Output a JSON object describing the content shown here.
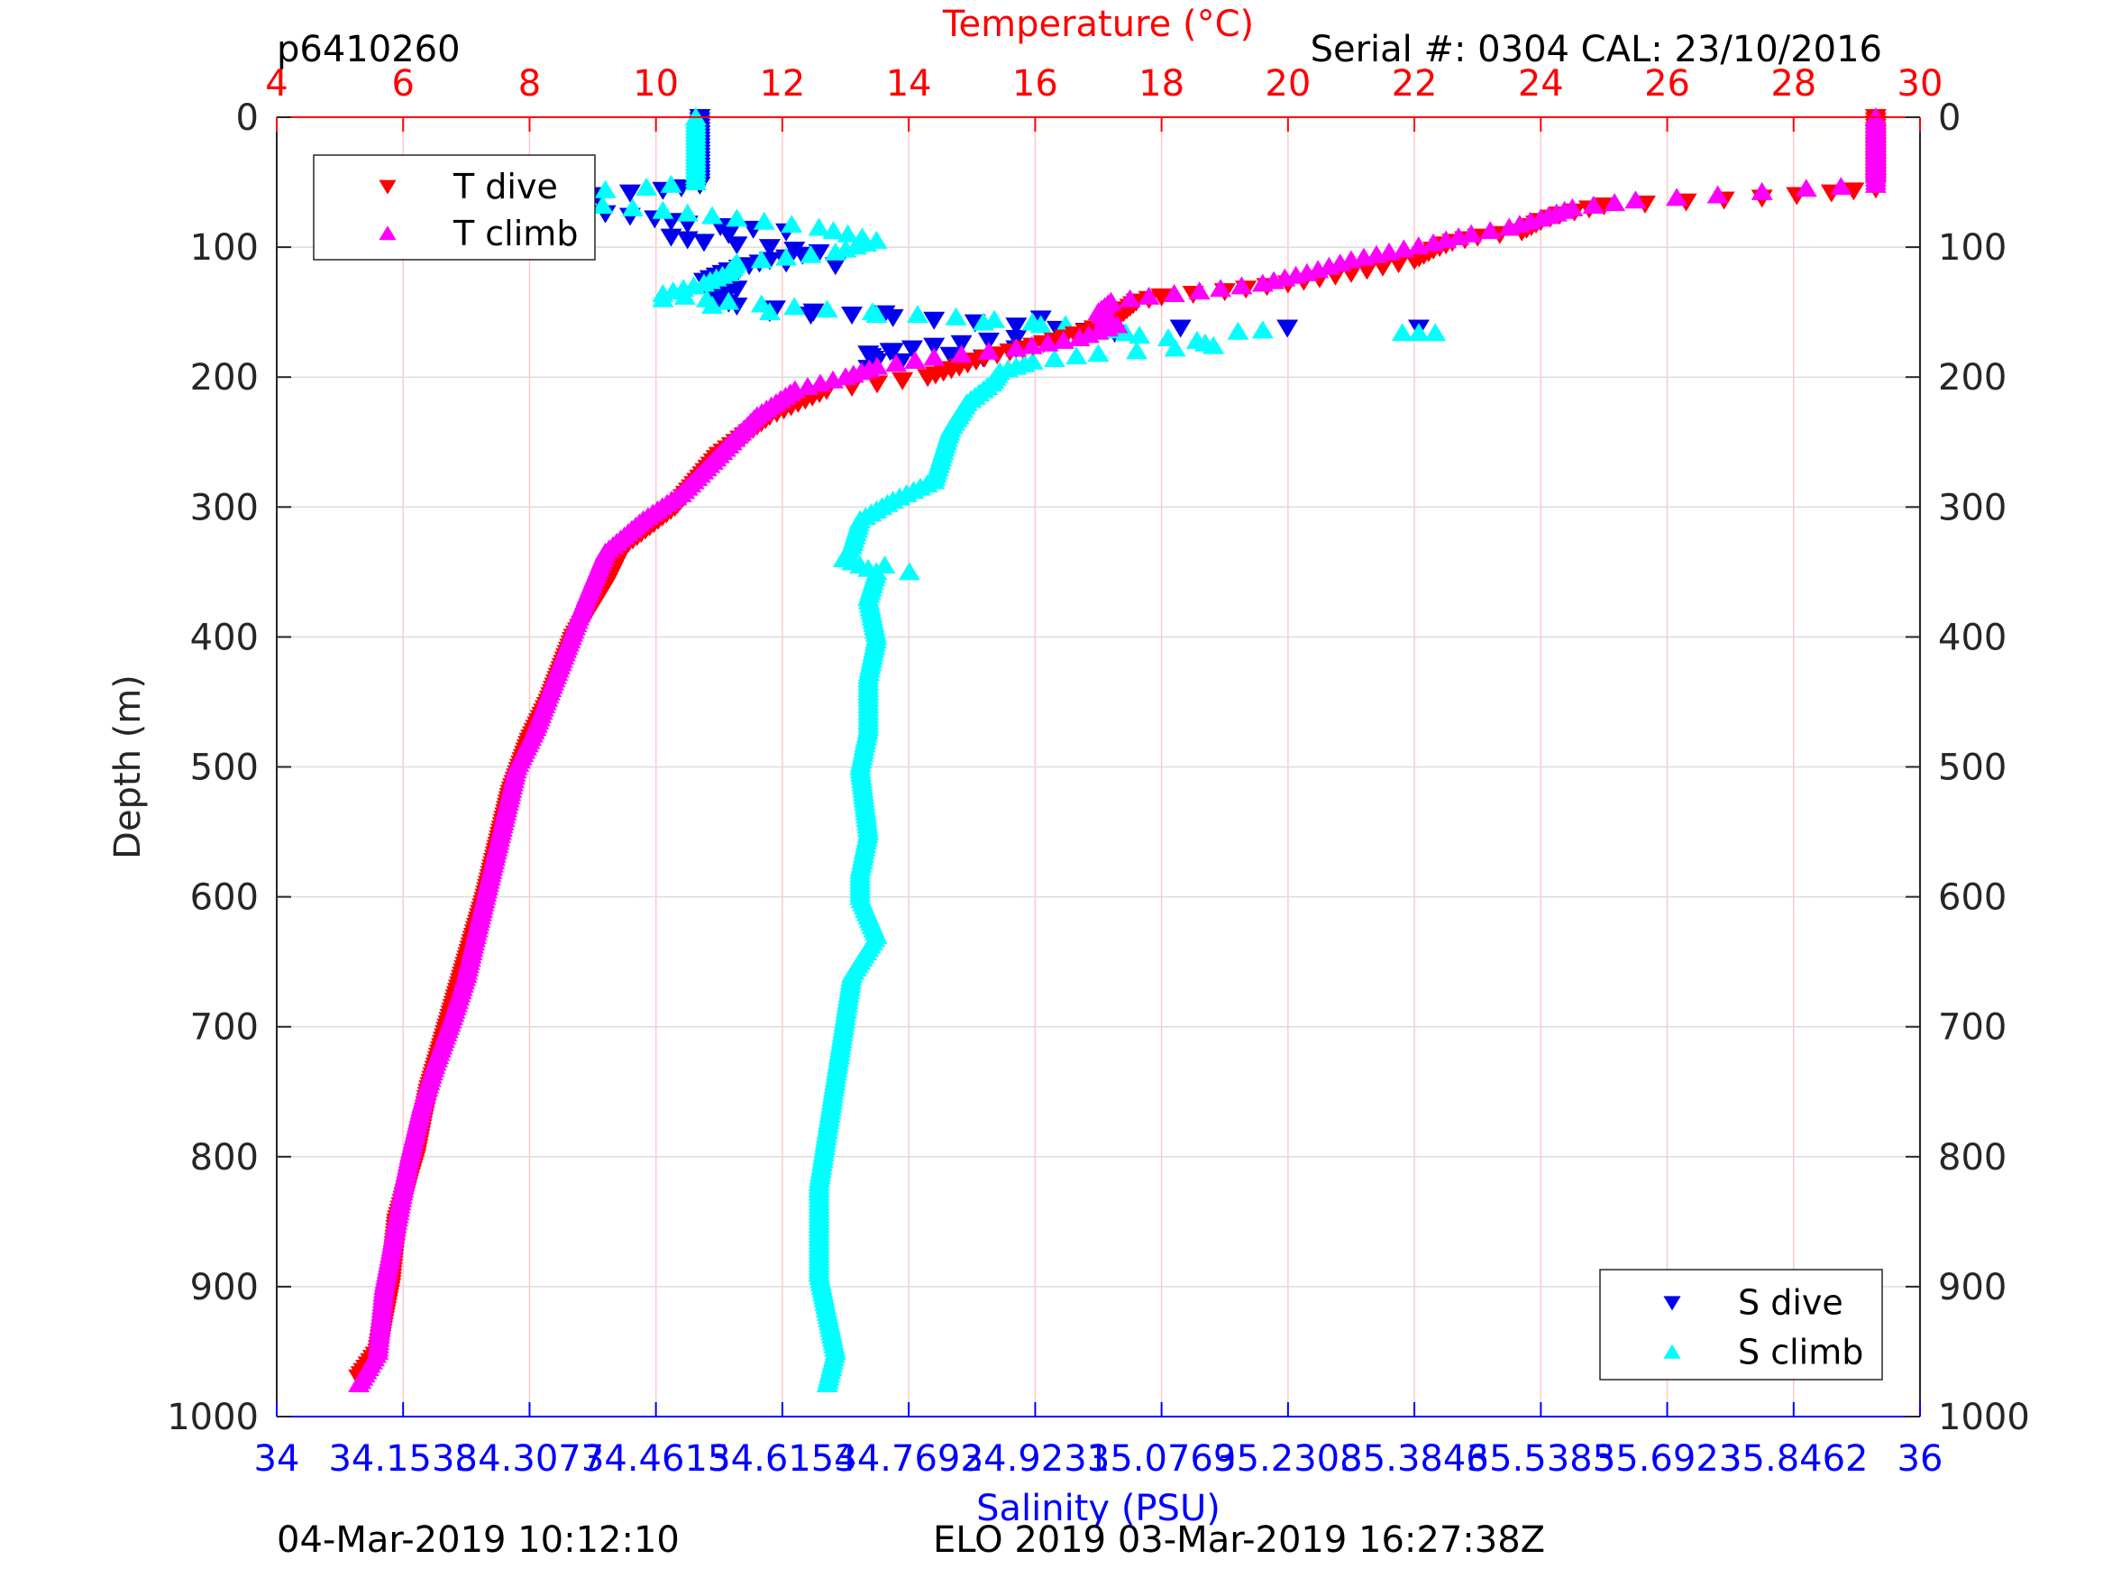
{
  "header": {
    "glider_id": "p6410260",
    "serial_cal": "Serial #: 0304  CAL: 23/10/2016"
  },
  "footer": {
    "left": "04-Mar-2019 10:12:10",
    "center": "ELO 2019 03-Mar-2019 16:27:38Z"
  },
  "colors": {
    "temperature_axis": "#ff0000",
    "salinity_axis": "#0000ff",
    "t_dive": "#ff0000",
    "t_climb": "#ff00ff",
    "s_dive": "#0000ee",
    "s_climb": "#00ffff",
    "grid_vertical": "#ffc8c8",
    "grid_horizontal": "#dcdcdc"
  },
  "chart_data": {
    "type": "scatter",
    "y_axis": {
      "label": "Depth (m)",
      "range": [
        0,
        1000
      ],
      "reversed": true,
      "ticks": [
        "0",
        "100",
        "200",
        "300",
        "400",
        "500",
        "600",
        "700",
        "800",
        "900",
        "1000"
      ],
      "tick_values": [
        0,
        100,
        200,
        300,
        400,
        500,
        600,
        700,
        800,
        900,
        1000
      ],
      "grid": true
    },
    "top_axis": {
      "label": "Temperature (°C)",
      "range": [
        4,
        30
      ],
      "ticks": [
        "4",
        "6",
        "8",
        "10",
        "12",
        "14",
        "16",
        "18",
        "20",
        "22",
        "24",
        "26",
        "28",
        "30"
      ],
      "tick_values": [
        4,
        6,
        8,
        10,
        12,
        14,
        16,
        18,
        20,
        22,
        24,
        26,
        28,
        30
      ],
      "grid": true
    },
    "bottom_axis": {
      "label": "Salinity (PSU)",
      "range": [
        34,
        36
      ],
      "ticks": [
        "34",
        "34.1538",
        "34.3077",
        "34.4615",
        "34.6154",
        "34.7692",
        "34.9231",
        "35.0769",
        "35.2308",
        "35.3846",
        "35.5385",
        "35.6923",
        "35.8462",
        "36"
      ],
      "tick_values": [
        34,
        34.1538,
        34.3077,
        34.4615,
        34.6154,
        34.7692,
        34.9231,
        35.0769,
        35.2308,
        35.3846,
        35.5385,
        35.6923,
        35.8462,
        36
      ]
    },
    "legend_temperature": {
      "position": "top-left",
      "entries": [
        {
          "label": "T dive",
          "marker": "triangle-down",
          "color": "#ff0000"
        },
        {
          "label": "T climb",
          "marker": "triangle-up",
          "color": "#ff00ff"
        }
      ]
    },
    "legend_salinity": {
      "position": "bottom-right",
      "entries": [
        {
          "label": "S dive",
          "marker": "triangle-down",
          "color": "#0000ee"
        },
        {
          "label": "S climb",
          "marker": "triangle-up",
          "color": "#00ffff"
        }
      ]
    },
    "series": [
      {
        "name": "T dive",
        "axis": "temperature",
        "marker": "triangle-down",
        "color": "#ff0000",
        "profile": [
          [
            29.3,
            0
          ],
          [
            29.3,
            20
          ],
          [
            29.3,
            40
          ],
          [
            29.3,
            55
          ],
          [
            28.6,
            58
          ],
          [
            27.5,
            62
          ],
          [
            26.3,
            65
          ],
          [
            25.0,
            68
          ],
          [
            24.3,
            75
          ],
          [
            24.0,
            80
          ],
          [
            23.7,
            88
          ],
          [
            23.0,
            92
          ],
          [
            22.6,
            96
          ],
          [
            22.3,
            102
          ],
          [
            22.0,
            110
          ],
          [
            21.5,
            115
          ],
          [
            21.0,
            120
          ],
          [
            20.0,
            128
          ],
          [
            19.0,
            134
          ],
          [
            18.0,
            138
          ],
          [
            17.6,
            142
          ],
          [
            17.4,
            150
          ],
          [
            17.2,
            158
          ],
          [
            16.8,
            165
          ],
          [
            16.3,
            172
          ],
          [
            15.8,
            178
          ],
          [
            15.2,
            185
          ],
          [
            14.8,
            192
          ],
          [
            14.3,
            200
          ],
          [
            12.7,
            210
          ],
          [
            11.8,
            230
          ],
          [
            11.0,
            260
          ],
          [
            10.3,
            300
          ],
          [
            9.5,
            330
          ],
          [
            9.2,
            360
          ],
          [
            8.7,
            400
          ],
          [
            8.3,
            450
          ],
          [
            8.0,
            480
          ],
          [
            7.7,
            520
          ],
          [
            7.5,
            560
          ],
          [
            7.3,
            600
          ],
          [
            7.0,
            650
          ],
          [
            6.7,
            700
          ],
          [
            6.4,
            750
          ],
          [
            6.2,
            800
          ],
          [
            5.9,
            850
          ],
          [
            5.8,
            900
          ],
          [
            5.6,
            950
          ],
          [
            5.3,
            970
          ]
        ]
      },
      {
        "name": "T climb",
        "axis": "temperature",
        "marker": "triangle-up",
        "color": "#ff00ff",
        "profile": [
          [
            29.3,
            0
          ],
          [
            29.3,
            20
          ],
          [
            29.3,
            40
          ],
          [
            29.3,
            52
          ],
          [
            28.2,
            55
          ],
          [
            26.8,
            60
          ],
          [
            25.5,
            64
          ],
          [
            24.5,
            70
          ],
          [
            24.0,
            78
          ],
          [
            23.5,
            85
          ],
          [
            22.9,
            90
          ],
          [
            22.3,
            97
          ],
          [
            21.6,
            104
          ],
          [
            21.0,
            110
          ],
          [
            20.3,
            120
          ],
          [
            19.6,
            128
          ],
          [
            18.6,
            134
          ],
          [
            17.8,
            138
          ],
          [
            17.2,
            142
          ],
          [
            17.0,
            150
          ],
          [
            17.1,
            155
          ],
          [
            17.3,
            160
          ],
          [
            16.7,
            170
          ],
          [
            15.7,
            178
          ],
          [
            14.4,
            185
          ],
          [
            13.5,
            192
          ],
          [
            13.0,
            200
          ],
          [
            12.2,
            210
          ],
          [
            11.6,
            230
          ],
          [
            11.0,
            260
          ],
          [
            10.4,
            290
          ],
          [
            9.8,
            310
          ],
          [
            9.2,
            335
          ],
          [
            8.9,
            370
          ],
          [
            8.5,
            420
          ],
          [
            8.1,
            470
          ],
          [
            7.8,
            500
          ],
          [
            7.6,
            540
          ],
          [
            7.4,
            580
          ],
          [
            7.2,
            620
          ],
          [
            7.0,
            660
          ],
          [
            6.8,
            690
          ],
          [
            6.5,
            730
          ],
          [
            6.3,
            760
          ],
          [
            6.1,
            800
          ],
          [
            5.9,
            850
          ],
          [
            5.7,
            900
          ],
          [
            5.6,
            950
          ],
          [
            5.3,
            975
          ]
        ]
      },
      {
        "name": "S dive",
        "axis": "salinity",
        "marker": "triangle-down",
        "color": "#0000ee",
        "profile": [
          [
            34.515,
            0
          ],
          [
            34.515,
            20
          ],
          [
            34.515,
            40
          ],
          [
            34.515,
            52
          ],
          [
            34.47,
            56
          ],
          [
            34.39,
            60
          ],
          [
            34.33,
            66
          ],
          [
            34.37,
            72
          ],
          [
            34.46,
            78
          ],
          [
            34.5,
            82
          ],
          [
            34.62,
            88
          ],
          [
            34.48,
            92
          ],
          [
            34.52,
            96
          ],
          [
            34.6,
            100
          ],
          [
            34.66,
            104
          ],
          [
            34.6,
            110
          ],
          [
            34.55,
            118
          ],
          [
            34.52,
            126
          ],
          [
            34.56,
            132
          ],
          [
            34.53,
            138
          ],
          [
            34.56,
            145
          ],
          [
            34.7,
            152
          ],
          [
            34.85,
            158
          ],
          [
            34.95,
            163
          ],
          [
            35.02,
            166
          ],
          [
            34.9,
            170
          ],
          [
            34.8,
            176
          ],
          [
            34.72,
            182
          ],
          [
            34.73,
            188
          ]
        ],
        "scatter": [
          [
            34.6,
            150
          ],
          [
            34.65,
            152
          ],
          [
            34.74,
            151
          ],
          [
            34.93,
            155
          ],
          [
            35.1,
            162
          ],
          [
            35.23,
            162
          ],
          [
            35.39,
            162
          ],
          [
            34.75,
            180
          ],
          [
            34.82,
            183
          ],
          [
            34.76,
            188
          ],
          [
            34.72,
            193
          ],
          [
            34.86,
            185
          ],
          [
            34.9,
            178
          ],
          [
            34.62,
            112
          ],
          [
            34.68,
            114
          ],
          [
            34.56,
            120
          ]
        ]
      },
      {
        "name": "S climb",
        "axis": "salinity",
        "marker": "triangle-up",
        "color": "#00ffff",
        "profile": [
          [
            34.51,
            0
          ],
          [
            34.51,
            20
          ],
          [
            34.51,
            40
          ],
          [
            34.51,
            50
          ],
          [
            34.45,
            54
          ],
          [
            34.35,
            58
          ],
          [
            34.29,
            62
          ],
          [
            34.36,
            66
          ],
          [
            34.47,
            72
          ],
          [
            34.56,
            78
          ],
          [
            34.66,
            85
          ],
          [
            34.73,
            95
          ],
          [
            34.68,
            104
          ],
          [
            34.56,
            112
          ],
          [
            34.55,
            120
          ],
          [
            34.52,
            128
          ],
          [
            34.47,
            136
          ],
          [
            34.55,
            142
          ],
          [
            34.67,
            148
          ],
          [
            34.78,
            152
          ],
          [
            34.92,
            158
          ],
          [
            35.0,
            162
          ],
          [
            35.05,
            168
          ],
          [
            35.12,
            172
          ],
          [
            35.14,
            176
          ],
          [
            35.0,
            182
          ],
          [
            34.92,
            188
          ],
          [
            34.88,
            196
          ],
          [
            34.87,
            205
          ],
          [
            34.84,
            220
          ],
          [
            34.82,
            240
          ],
          [
            34.81,
            260
          ],
          [
            34.8,
            280
          ],
          [
            34.75,
            295
          ],
          [
            34.71,
            310
          ],
          [
            34.7,
            330
          ],
          [
            34.69,
            340
          ],
          [
            34.73,
            350
          ],
          [
            34.72,
            370
          ],
          [
            34.73,
            400
          ],
          [
            34.72,
            430
          ],
          [
            34.72,
            470
          ],
          [
            34.71,
            500
          ],
          [
            34.72,
            550
          ],
          [
            34.71,
            580
          ],
          [
            34.71,
            600
          ],
          [
            34.73,
            630
          ],
          [
            34.7,
            660
          ],
          [
            34.69,
            700
          ],
          [
            34.68,
            740
          ],
          [
            34.67,
            780
          ],
          [
            34.66,
            820
          ],
          [
            34.66,
            860
          ],
          [
            34.66,
            890
          ],
          [
            34.67,
            920
          ],
          [
            34.68,
            950
          ],
          [
            34.67,
            975
          ]
        ],
        "scatter": [
          [
            34.47,
            140
          ],
          [
            34.53,
            145
          ],
          [
            34.6,
            150
          ],
          [
            34.73,
            152
          ],
          [
            34.86,
            158
          ],
          [
            34.93,
            160
          ],
          [
            35.17,
            165
          ],
          [
            35.2,
            164
          ],
          [
            35.37,
            166
          ],
          [
            35.39,
            166
          ],
          [
            35.41,
            166
          ],
          [
            34.77,
            350
          ],
          [
            34.74,
            345
          ],
          [
            34.7,
            340
          ]
        ]
      }
    ]
  }
}
